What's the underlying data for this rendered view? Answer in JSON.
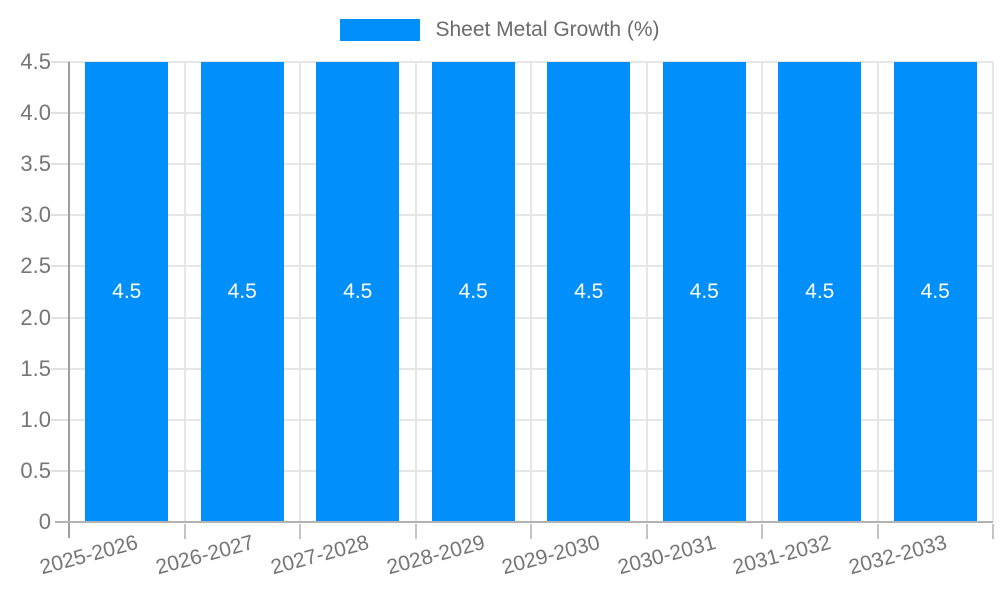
{
  "legend": {
    "label": "Sheet Metal Growth (%)",
    "swatch_color": "#008FFB"
  },
  "chart_data": {
    "type": "bar",
    "title": "Sheet Metal Growth (%)",
    "categories": [
      "2025-2026",
      "2026-2027",
      "2027-2028",
      "2028-2029",
      "2029-2030",
      "2030-2031",
      "2031-2032",
      "2032-2033"
    ],
    "series": [
      {
        "name": "Sheet Metal Growth (%)",
        "values": [
          4.5,
          4.5,
          4.5,
          4.5,
          4.5,
          4.5,
          4.5,
          4.5
        ]
      }
    ],
    "bar_value_labels": [
      "4.5",
      "4.5",
      "4.5",
      "4.5",
      "4.5",
      "4.5",
      "4.5",
      "4.5"
    ],
    "xlabel": "",
    "ylabel": "",
    "ylim": [
      0,
      4.5
    ],
    "yticks": [
      0,
      0.5,
      1.0,
      1.5,
      2.0,
      2.5,
      3.0,
      3.5,
      4.0,
      4.5
    ],
    "ytick_labels": [
      "0",
      "0.5",
      "1.0",
      "1.5",
      "2.0",
      "2.5",
      "3.0",
      "3.5",
      "4.0",
      "4.5"
    ],
    "grid": "horizontal lines at each 0.5 step plus vertical lines at category boundaries",
    "legend_position": "top-center",
    "x_label_rotation_deg": -15,
    "colors": {
      "bar": "#008FFB",
      "bar_value_text": "#ffffff",
      "axis_text": "#757575",
      "legend_text": "#6b6b6b",
      "gridline": "#e6e6e6",
      "y_axis_line": "#9e9e9e",
      "x_axis_line": "#b3b3b3"
    }
  }
}
